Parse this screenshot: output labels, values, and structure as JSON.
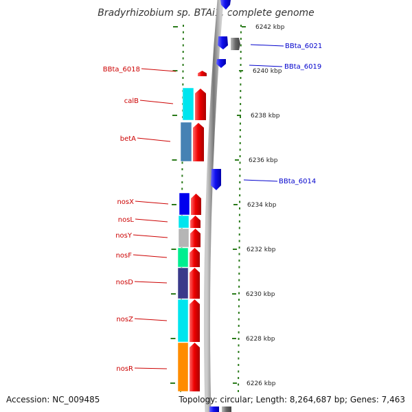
{
  "title": "Bradyrhizobium sp. BTAi1, complete genome",
  "accession": "Accession: NC_009485",
  "topology": "Topology: circular; Length: 8,264,687 bp; Genes: 7,463",
  "colors": {
    "forward_strand": "#ee0000",
    "reverse_strand": "#1010ee",
    "backbone": "#999999",
    "ticks": "#2a7a1a",
    "left_labels": "#cc0000",
    "right_labels": "#0000cc",
    "other_gene": "#666666"
  },
  "kbp_marks": [
    "6242 kbp",
    "6240 kbp",
    "6238 kbp",
    "6236 kbp",
    "6234 kbp",
    "6232 kbp",
    "6230 kbp",
    "6228 kbp",
    "6226 kbp"
  ],
  "left_genes": [
    {
      "label": "BBta_6018",
      "color": "#ee0000"
    },
    {
      "label": "calB",
      "color": "#00e5ee"
    },
    {
      "label": "betA",
      "color": "#4682b4"
    },
    {
      "label": "nosX",
      "color": "#0000ee"
    },
    {
      "label": "nosL",
      "color": "#00e5ee"
    },
    {
      "label": "nosY",
      "color": "#b5b5b5"
    },
    {
      "label": "nosF",
      "color": "#00ee90"
    },
    {
      "label": "nosD",
      "color": "#3a3a8a"
    },
    {
      "label": "nosZ",
      "color": "#00e5ee"
    },
    {
      "label": "nosR",
      "color": "#ff8c00"
    }
  ],
  "right_genes": [
    {
      "label": "BBta_6021"
    },
    {
      "label": "BBta_6019"
    },
    {
      "label": "BBta_6014"
    }
  ]
}
